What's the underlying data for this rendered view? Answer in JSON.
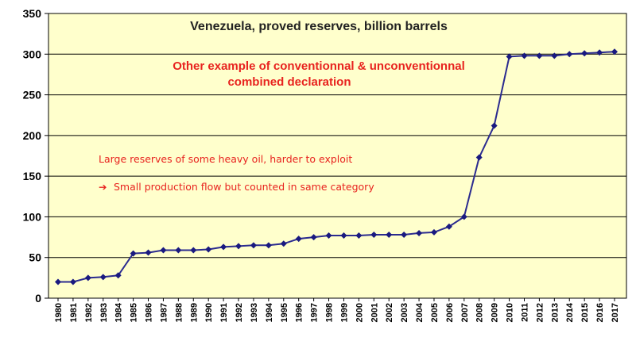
{
  "chart_data": {
    "type": "line",
    "title": "Venezuela, proved reserves, billion barrels",
    "annotations": {
      "headline": [
        "Other example of conventionnal & unconventionnal",
        "combined declaration"
      ],
      "note1": "Large reserves of some heavy oil, harder to exploit",
      "note2_arrow": "➔",
      "note2": "Small production flow but counted in same category"
    },
    "xlabel": "",
    "ylabel": "",
    "ylim": [
      0,
      350
    ],
    "yticks": [
      "0",
      "50",
      "100",
      "150",
      "200",
      "250",
      "300",
      "350"
    ],
    "grid": true,
    "x": [
      "1980",
      "1981",
      "1982",
      "1983",
      "1984",
      "1985",
      "1986",
      "1987",
      "1988",
      "1989",
      "1990",
      "1991",
      "1992",
      "1993",
      "1994",
      "1995",
      "1996",
      "1997",
      "1998",
      "1999",
      "2000",
      "2001",
      "2002",
      "2003",
      "2004",
      "2005",
      "2006",
      "2007",
      "2008",
      "2009",
      "2010",
      "2011",
      "2012",
      "2013",
      "2014",
      "2015",
      "2016",
      "2017"
    ],
    "series": [
      {
        "values": [
          20,
          20,
          25,
          26,
          28,
          55,
          56,
          59,
          59,
          59,
          60,
          63,
          64,
          65,
          65,
          67,
          73,
          75,
          77,
          77,
          77,
          78,
          78,
          78,
          80,
          81,
          88,
          100,
          173,
          212,
          297,
          298,
          298,
          298,
          300,
          301,
          302,
          303
        ]
      }
    ],
    "colors": {
      "plot_background": "#ffffcc",
      "series_line": "#2b2b8f",
      "marker": "#1a1a80",
      "annotation": "#e8231f",
      "grid": "#000000"
    }
  }
}
